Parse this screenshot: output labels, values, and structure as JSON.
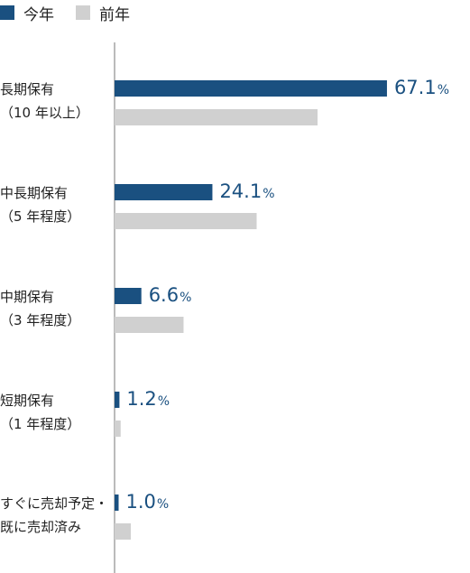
{
  "legend": {
    "current": "今年",
    "previous": "前年"
  },
  "colors": {
    "current": "#1a5080",
    "previous": "#d0d0d0",
    "axis": "#777777"
  },
  "chart_data": {
    "type": "bar",
    "orientation": "horizontal",
    "categories": [
      [
        "長期保有",
        "（10 年以上）"
      ],
      [
        "中長期保有",
        "（5 年程度）"
      ],
      [
        "中期保有",
        "（3 年程度）"
      ],
      [
        "短期保有",
        "（1 年程度）"
      ],
      [
        "すぐに売却予定・",
        "既に売却済み"
      ]
    ],
    "series": [
      {
        "name": "今年",
        "values": [
          67.1,
          24.1,
          6.6,
          1.2,
          1.0
        ]
      },
      {
        "name": "前年",
        "values": [
          50.0,
          35.0,
          17.0,
          1.5,
          4.0
        ]
      }
    ],
    "value_labels": [
      "67.1",
      "24.1",
      "6.6",
      "1.2",
      "1.0"
    ],
    "unit": "%",
    "xlim": [
      0,
      100
    ],
    "grid": false,
    "legend_position": "top-left"
  }
}
